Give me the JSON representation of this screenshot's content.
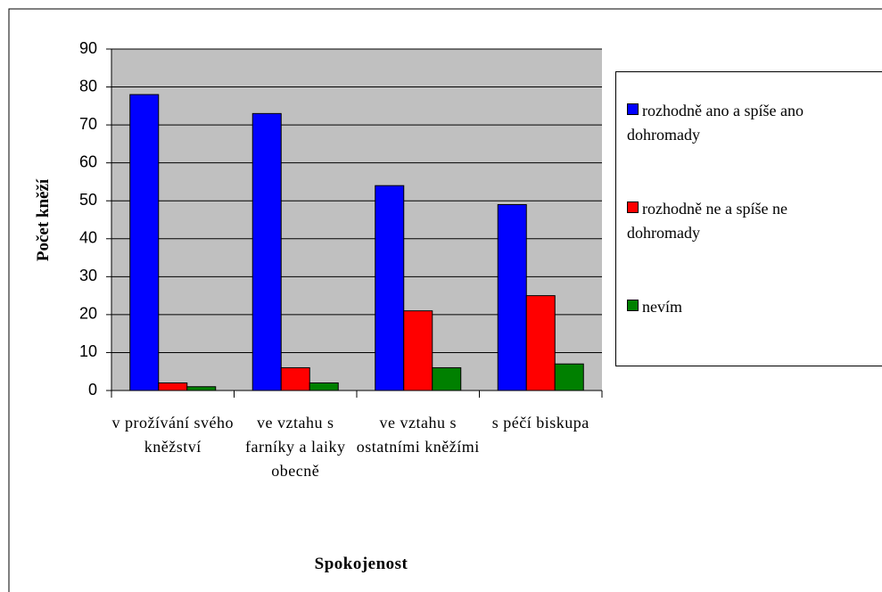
{
  "chart_data": {
    "type": "bar",
    "x_label": "Spokojenost",
    "y_label": "Počet kněží",
    "categories": [
      "v prožívání svého kněžství",
      "ve vztahu s farníky a laiky obecně",
      "ve vztahu s ostatními kněžími",
      "s péčí biskupa"
    ],
    "series": [
      {
        "name": "rozhodně ano a spíše ano dohromady",
        "color": "#0000ff",
        "values": [
          78,
          73,
          54,
          49
        ]
      },
      {
        "name": "rozhodně ne a spíše ne dohromady",
        "color": "#ff0000",
        "values": [
          2,
          6,
          21,
          25
        ]
      },
      {
        "name": "nevím",
        "color": "#008000",
        "values": [
          1,
          2,
          6,
          7
        ]
      }
    ],
    "ylim": [
      0,
      90
    ],
    "yticks": [
      0,
      10,
      20,
      30,
      40,
      50,
      60,
      70,
      80,
      90
    ],
    "grid": true,
    "legend": "right"
  }
}
